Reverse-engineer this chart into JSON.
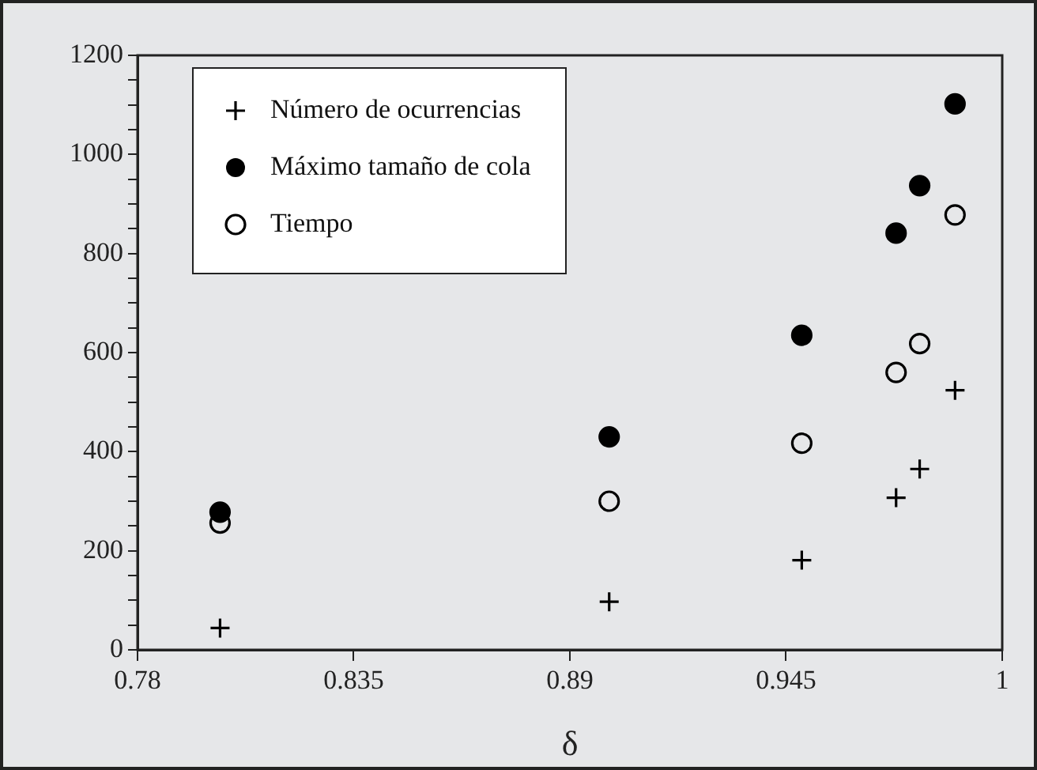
{
  "chart_data": {
    "type": "scatter",
    "xlabel": "δ",
    "legend": "top left",
    "grid": false,
    "xlim": [
      0.78,
      1
    ],
    "xticks": [
      0.78,
      0.835,
      0.89,
      0.945,
      1
    ],
    "ylim": [
      0,
      1200
    ],
    "yticks": [
      0,
      {
        "value": 50,
        "label": null
      },
      {
        "value": 100,
        "label": null
      },
      {
        "value": 150,
        "label": null
      },
      200,
      {
        "value": 250,
        "label": null
      },
      {
        "value": 300,
        "label": null
      },
      {
        "value": 350,
        "label": null
      },
      400,
      {
        "value": 450,
        "label": null
      },
      {
        "value": 500,
        "label": null
      },
      {
        "value": 550,
        "label": null
      },
      600,
      {
        "value": 650,
        "label": null
      },
      {
        "value": 700,
        "label": null
      },
      {
        "value": 750,
        "label": null
      },
      800,
      {
        "value": 850,
        "label": null
      },
      {
        "value": 900,
        "label": null
      },
      {
        "value": 950,
        "label": null
      },
      1000,
      {
        "value": 1050,
        "label": null
      },
      {
        "value": 1100,
        "label": null
      },
      {
        "value": 1150,
        "label": null
      },
      1200
    ],
    "x": [
      0.801,
      0.9,
      0.949,
      0.973,
      0.979,
      0.988
    ],
    "series": [
      {
        "name": "Número de ocurrencias",
        "color": "#000000",
        "marker": "cross",
        "values": [
          44,
          97,
          181,
          307,
          365,
          524
        ]
      },
      {
        "name": "Máximo tamaño de cola",
        "color": "#000000",
        "marker": "circle",
        "values": [
          278,
          430,
          635,
          841,
          937,
          1102
        ]
      },
      {
        "name": "Tiempo",
        "color": "#000000",
        "marker": "circle",
        "values": [
          256,
          300,
          417,
          560,
          618,
          878
        ]
      }
    ]
  }
}
